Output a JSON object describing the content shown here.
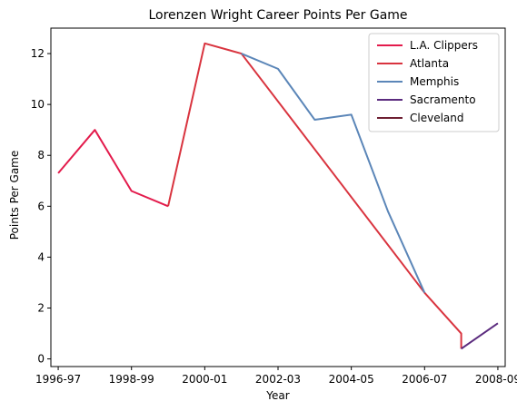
{
  "chart_data": {
    "type": "line",
    "title": "Lorenzen Wright Career Points Per Game",
    "xlabel": "Year",
    "ylabel": "Points Per Game",
    "x_tick_labels": [
      "1996-97",
      "1998-99",
      "2000-01",
      "2002-03",
      "2004-05",
      "2006-07",
      "2008-09"
    ],
    "x_tick_positions": [
      1996,
      1998,
      2000,
      2002,
      2004,
      2006,
      2008
    ],
    "xlim": [
      1995.8,
      2008.2
    ],
    "ylim": [
      -0.3,
      13.0
    ],
    "y_ticks": [
      0,
      2,
      4,
      6,
      8,
      10,
      12
    ],
    "grid": false,
    "legend_position": "upper-right",
    "series": [
      {
        "name": "L.A. Clippers",
        "color": "#e31b4c",
        "points": [
          [
            1996,
            7.3
          ],
          [
            1997,
            9.0
          ],
          [
            1998,
            6.6
          ],
          [
            1999,
            6.0
          ]
        ]
      },
      {
        "name": "Atlanta",
        "color": "#d9343f",
        "points": [
          [
            1999,
            6.0
          ],
          [
            2000,
            12.4
          ],
          [
            2001,
            12.0
          ],
          [
            2006,
            2.6
          ],
          [
            2007,
            1.0
          ],
          [
            2007,
            0.4
          ]
        ]
      },
      {
        "name": "Memphis",
        "color": "#5b86b8",
        "points": [
          [
            2001,
            12.0
          ],
          [
            2002,
            11.4
          ],
          [
            2003,
            9.4
          ],
          [
            2004,
            9.6
          ],
          [
            2005,
            5.8
          ],
          [
            2006,
            2.6
          ]
        ]
      },
      {
        "name": "Sacramento",
        "color": "#5b2b7e",
        "points": [
          [
            2007,
            0.4
          ],
          [
            2008,
            1.4
          ]
        ]
      },
      {
        "name": "Cleveland",
        "color": "#6e1f33",
        "points": []
      }
    ]
  }
}
